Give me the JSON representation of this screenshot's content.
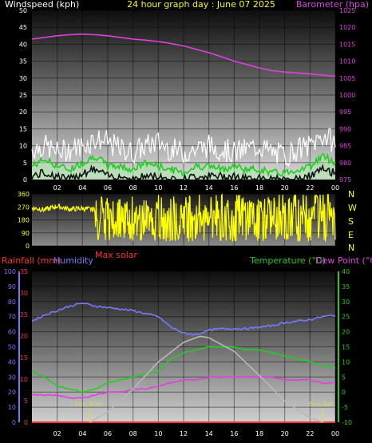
{
  "header": {
    "left_title": "Windspeed (kph)",
    "center_title": "24 hour graph day : June 07 2025",
    "right_title": "Barometer (hpa)"
  },
  "colors": {
    "wind_title": "#ffffff",
    "center_title": "#ffff00",
    "baro": "#e040e0",
    "wind_gust": "#ffffff",
    "wind_avg": "#22cc22",
    "wind_fill": "#a8e8a8",
    "direction": "#ffff00",
    "rain": "#ff3030",
    "humidity": "#7878ff",
    "temperature": "#22cc22",
    "dewpoint": "#e040e0",
    "solar": "#b8b8b8",
    "sun_label": "#e0d060"
  },
  "chart_data": [
    {
      "id": "wind",
      "type": "line",
      "x_tick_labels": [
        "02",
        "04",
        "06",
        "08",
        "10",
        "12",
        "14",
        "16",
        "18",
        "20",
        "22",
        "00"
      ],
      "left_axis": {
        "label": "Windspeed (kph)",
        "ylim": [
          0,
          50
        ],
        "ticks": [
          0,
          5,
          10,
          15,
          20,
          25,
          30,
          35,
          40,
          45,
          50
        ]
      },
      "right_axis": {
        "label": "Barometer (hpa)",
        "ylim": [
          975,
          1025
        ],
        "ticks": [
          975,
          980,
          985,
          990,
          995,
          1000,
          1005,
          1010,
          1015,
          1020,
          1025
        ]
      },
      "series": [
        {
          "name": "Barometer (hpa)",
          "axis": "right",
          "x": [
            0,
            1,
            2,
            3,
            4,
            5,
            6,
            7,
            8,
            9,
            10,
            11,
            12,
            13,
            14,
            15,
            16,
            17,
            18,
            19,
            20,
            21,
            22,
            23,
            24
          ],
          "values": [
            1016.5,
            1017.0,
            1017.5,
            1017.8,
            1018.0,
            1017.8,
            1017.5,
            1017.0,
            1016.5,
            1016.2,
            1015.8,
            1015.2,
            1014.5,
            1013.5,
            1012.5,
            1011.3,
            1010.0,
            1009.0,
            1008.0,
            1007.2,
            1006.8,
            1006.5,
            1006.2,
            1005.9,
            1005.5
          ]
        },
        {
          "name": "gust",
          "axis": "left",
          "style": "spiky",
          "x": [
            0,
            1,
            2,
            3,
            4,
            5,
            6,
            7,
            8,
            9,
            10,
            11,
            12,
            13,
            14,
            15,
            16,
            17,
            18,
            19,
            20,
            21,
            22,
            23,
            24
          ],
          "values": [
            9,
            10,
            8,
            9,
            10,
            12,
            11,
            9,
            8,
            10,
            11,
            9,
            8,
            9,
            10,
            9,
            8,
            9,
            10,
            8,
            7,
            9,
            10,
            13,
            11
          ]
        },
        {
          "name": "average",
          "axis": "left",
          "x": [
            0,
            1,
            2,
            3,
            4,
            5,
            6,
            7,
            8,
            9,
            10,
            11,
            12,
            13,
            14,
            15,
            16,
            17,
            18,
            19,
            20,
            21,
            22,
            23,
            24
          ],
          "values": [
            4,
            6,
            4,
            3,
            5,
            7,
            4,
            4,
            3,
            5,
            4,
            3,
            2,
            4,
            4,
            3,
            4,
            3,
            3,
            2,
            2,
            3,
            4,
            7,
            5
          ]
        },
        {
          "name": "lull",
          "axis": "left",
          "x": [
            0,
            1,
            2,
            3,
            4,
            5,
            6,
            7,
            8,
            9,
            10,
            11,
            12,
            13,
            14,
            15,
            16,
            17,
            18,
            19,
            20,
            21,
            22,
            23,
            24
          ],
          "values": [
            1,
            2,
            1,
            0,
            2,
            3,
            1,
            1,
            0,
            1,
            1,
            0,
            0,
            1,
            1,
            1,
            1,
            0,
            1,
            0,
            0,
            0,
            1,
            3,
            2
          ]
        }
      ]
    },
    {
      "id": "direction",
      "type": "scatter",
      "x_tick_labels": [
        "02",
        "04",
        "06",
        "08",
        "10",
        "12",
        "14",
        "16",
        "18",
        "20",
        "22",
        "00"
      ],
      "left_axis": {
        "ylim": [
          0,
          360
        ],
        "ticks": [
          0,
          90,
          180,
          270,
          360
        ]
      },
      "right_axis_labels": [
        "N",
        "W",
        "S",
        "E",
        "N"
      ],
      "series": [
        {
          "name": "direction",
          "x": [
            0,
            1,
            2,
            3,
            4,
            5,
            6,
            7,
            8,
            9,
            10,
            11,
            12,
            13,
            14,
            15,
            16,
            17,
            18,
            19,
            20,
            21,
            22,
            23,
            24
          ],
          "values": [
            265,
            250,
            275,
            255,
            260,
            250,
            240,
            225,
            230,
            210,
            250,
            235,
            225,
            240,
            230,
            250,
            245,
            235,
            245,
            225,
            250,
            245,
            265,
            290,
            295
          ]
        }
      ]
    },
    {
      "id": "temp",
      "type": "line",
      "x_tick_labels": [
        "02",
        "04",
        "06",
        "08",
        "10",
        "12",
        "14",
        "16",
        "18",
        "20",
        "22",
        "00"
      ],
      "title_left": "Rainfall (mm)",
      "title_humidity": "Humidity",
      "title_solar": "Max solar",
      "title_temp": "Temperature (°C)",
      "title_dew": "Dew Point (°C)",
      "sunrise_label": "Sun Rise",
      "sunset_label": "Sun Set",
      "sunrise_hour": 4.6,
      "sunset_hour": 23.0,
      "humidity_axis": {
        "ylim": [
          0,
          100
        ],
        "ticks": [
          0,
          10,
          20,
          30,
          40,
          50,
          60,
          70,
          80,
          90,
          100
        ]
      },
      "rain_axis": {
        "ylim": [
          0,
          35
        ],
        "ticks": [
          0,
          5,
          10,
          15,
          20,
          25,
          30,
          35
        ]
      },
      "temp_axis": {
        "ylim": [
          -10,
          40
        ],
        "ticks": [
          -10,
          -5,
          0,
          5,
          10,
          15,
          20,
          25,
          30,
          35,
          40
        ]
      },
      "series": [
        {
          "name": "Humidity",
          "axis": "humidity",
          "x": [
            0,
            1,
            2,
            3,
            4,
            5,
            6,
            7,
            8,
            9,
            10,
            11,
            12,
            13,
            14,
            15,
            16,
            17,
            18,
            19,
            20,
            21,
            22,
            23,
            24
          ],
          "values": [
            67,
            71,
            74,
            77,
            79,
            77,
            76,
            75,
            74,
            72,
            70,
            63,
            59,
            58,
            61,
            62,
            62,
            62,
            63,
            64,
            66,
            67,
            68,
            70,
            71
          ]
        },
        {
          "name": "Temperature (°C)",
          "axis": "temp",
          "x": [
            0,
            1,
            2,
            3,
            4,
            5,
            6,
            7,
            8,
            9,
            10,
            11,
            12,
            13,
            14,
            15,
            16,
            17,
            18,
            19,
            20,
            21,
            22,
            23,
            24
          ],
          "values": [
            7,
            5,
            2,
            1,
            0,
            1,
            3,
            4,
            5,
            6,
            7,
            11,
            13,
            14,
            15,
            15,
            15,
            14,
            14,
            13,
            12,
            11,
            10,
            9,
            8
          ]
        },
        {
          "name": "Dew Point (°C)",
          "axis": "temp",
          "x": [
            0,
            1,
            2,
            3,
            4,
            5,
            6,
            7,
            8,
            9,
            10,
            11,
            12,
            13,
            14,
            15,
            16,
            17,
            18,
            19,
            20,
            21,
            22,
            23,
            24
          ],
          "values": [
            -1,
            -1,
            -1,
            -2,
            -2,
            -1,
            0,
            0,
            1,
            1,
            2,
            3,
            4,
            4,
            5,
            5,
            5,
            5,
            5,
            5,
            4,
            4,
            4,
            3,
            3
          ]
        },
        {
          "name": "Rainfall (mm)",
          "axis": "rain",
          "x": [
            0,
            24
          ],
          "values": [
            0,
            0
          ]
        },
        {
          "name": "Max solar",
          "axis": "humidity",
          "x": [
            4.6,
            6,
            8,
            10,
            12,
            13.3,
            14,
            16,
            18,
            20,
            22,
            23.0
          ],
          "values": [
            0,
            7,
            22,
            40,
            53,
            57,
            56,
            47,
            31,
            14,
            3,
            0
          ]
        }
      ]
    }
  ]
}
